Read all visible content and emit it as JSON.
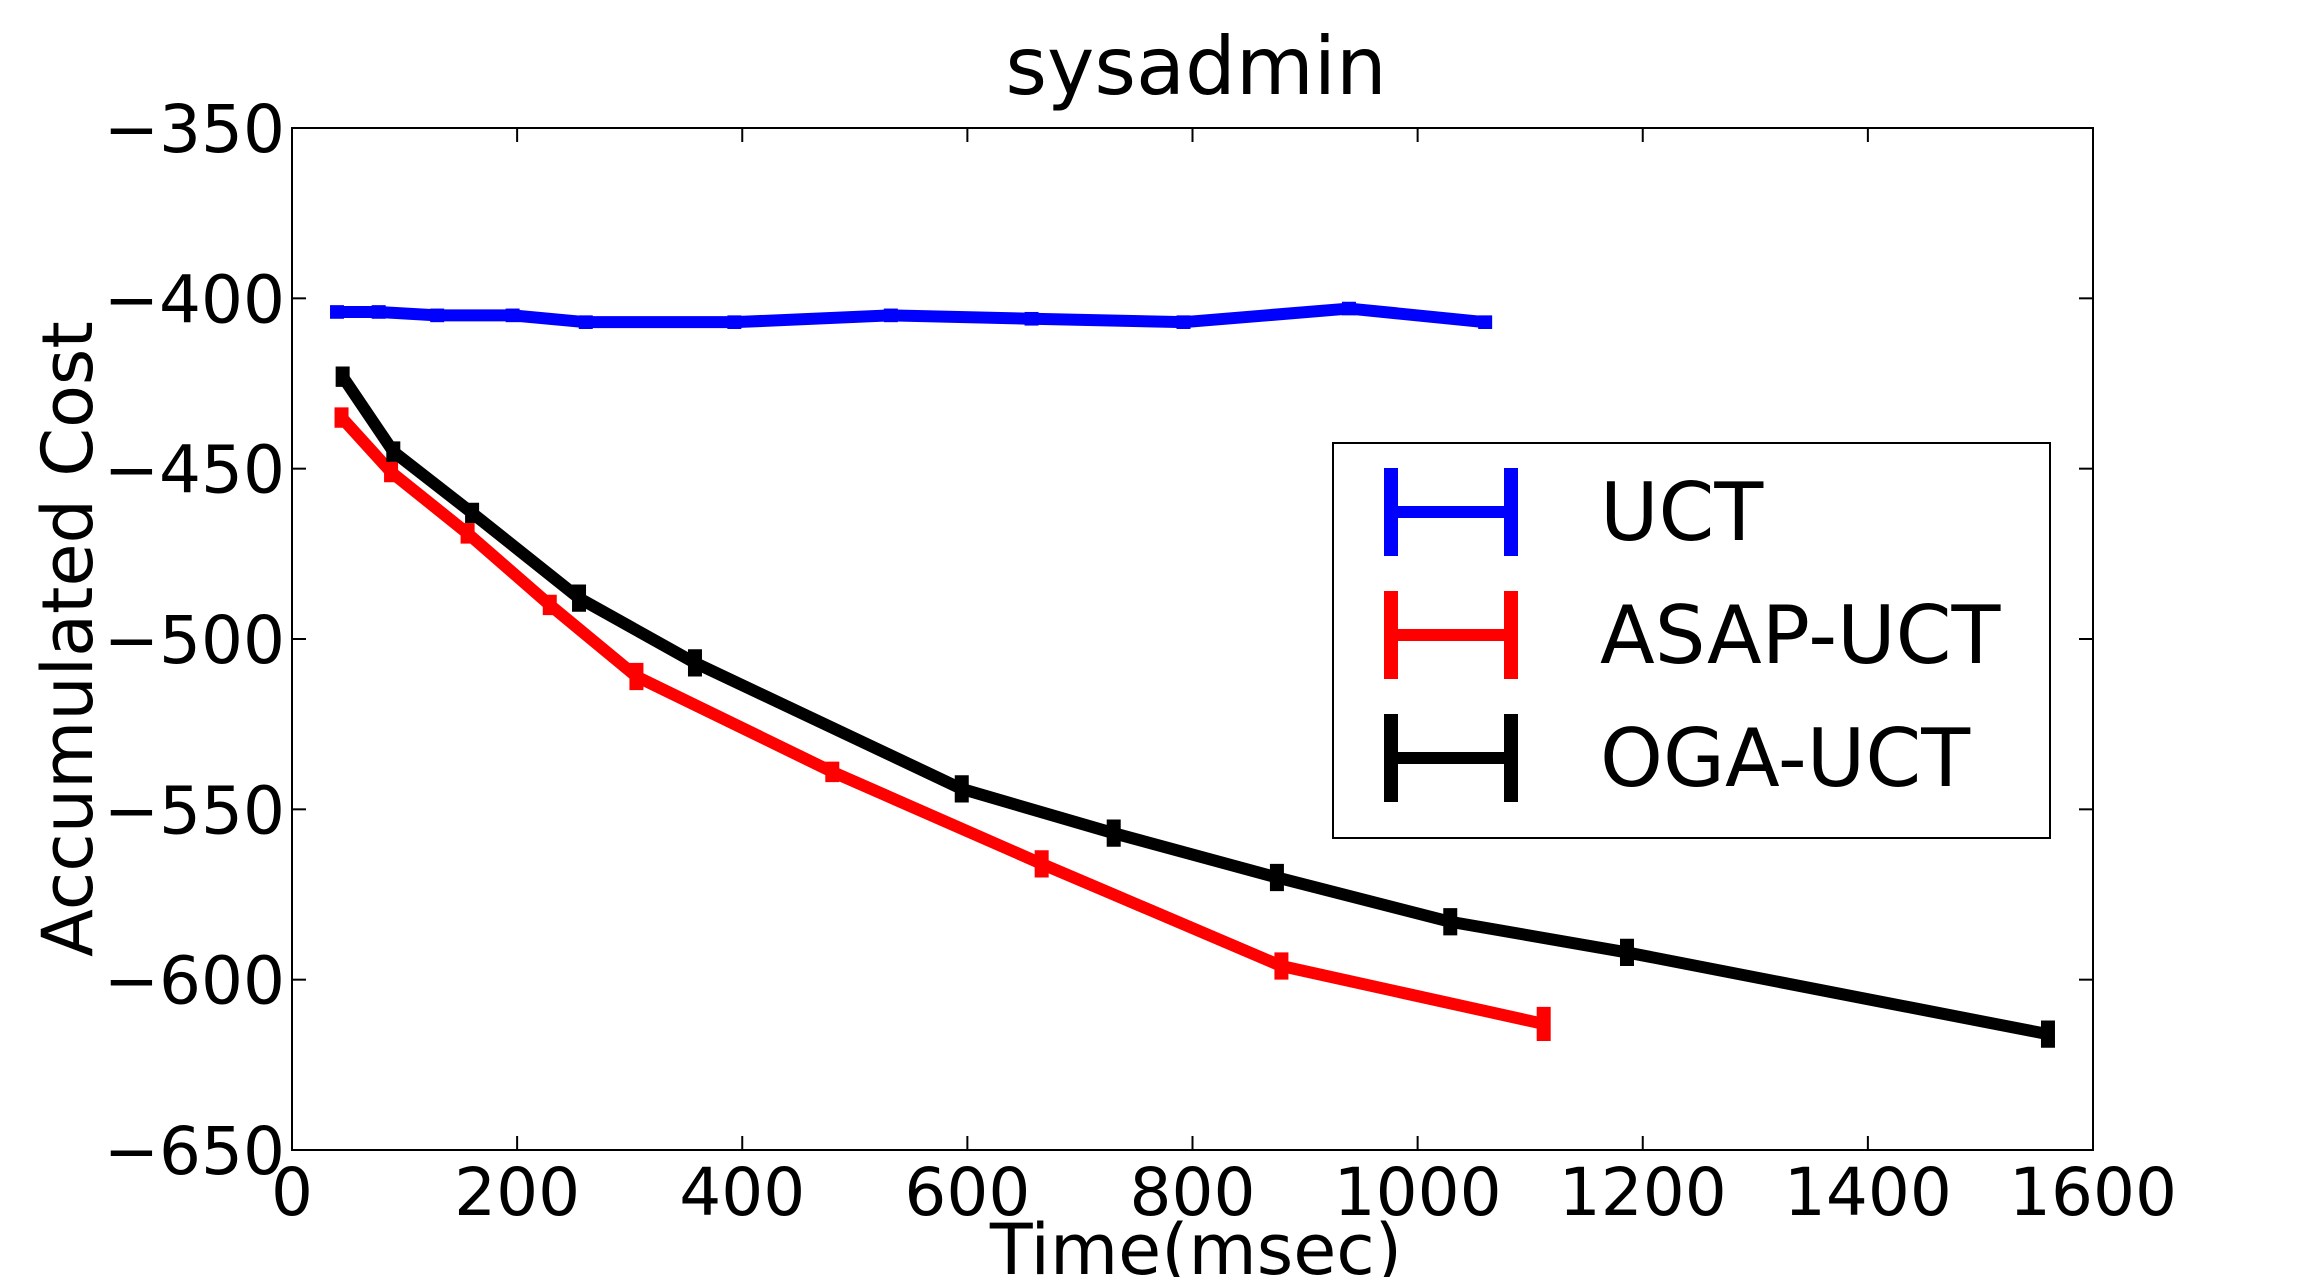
{
  "chart_data": {
    "type": "line",
    "title": "sysadmin",
    "xlabel": "Time(msec)",
    "ylabel": "Accumulated Cost",
    "xlim": [
      0,
      1600
    ],
    "ylim": [
      -650,
      -350
    ],
    "xticks": [
      0,
      200,
      400,
      600,
      800,
      1000,
      1200,
      1400,
      1600
    ],
    "xtick_labels": [
      "0",
      "200",
      "400",
      "600",
      "800",
      "1000",
      "1200",
      "1400",
      "1600"
    ],
    "yticks": [
      -350,
      -400,
      -450,
      -500,
      -550,
      -600,
      -650
    ],
    "ytick_labels": [
      "−350",
      "−400",
      "−450",
      "−500",
      "−550",
      "−600",
      "−650"
    ],
    "grid": false,
    "legend_position": "center-right",
    "error_bars": true,
    "series": [
      {
        "name": "UCT",
        "color": "#0000ff",
        "x": [
          40,
          77,
          129,
          196,
          261,
          393,
          532,
          657,
          792,
          939,
          1060
        ],
        "y": [
          -404,
          -404,
          -405,
          -405,
          -407,
          -407,
          -405,
          -406,
          -407,
          -403,
          -407
        ],
        "err": [
          2,
          2,
          2,
          2,
          2,
          2,
          2,
          2,
          2,
          2,
          2
        ]
      },
      {
        "name": "ASAP-UCT",
        "color": "#ff0000",
        "x": [
          44,
          88,
          156,
          229,
          306,
          480,
          666,
          879,
          1112
        ],
        "y": [
          -435,
          -451,
          -469,
          -490,
          -511,
          -539,
          -566,
          -596,
          -613
        ],
        "err": [
          3,
          3,
          3,
          3,
          4,
          3,
          4,
          4,
          5
        ]
      },
      {
        "name": "OGA-UCT",
        "color": "#000000",
        "x": [
          45,
          90,
          160,
          255,
          358,
          595,
          730,
          875,
          1029,
          1186,
          1560
        ],
        "y": [
          -423,
          -445,
          -463,
          -488,
          -507,
          -544,
          -557,
          -570,
          -583,
          -592,
          -616
        ],
        "err": [
          3,
          3,
          3,
          4,
          4,
          4,
          4,
          4,
          4,
          4,
          4
        ]
      }
    ]
  }
}
